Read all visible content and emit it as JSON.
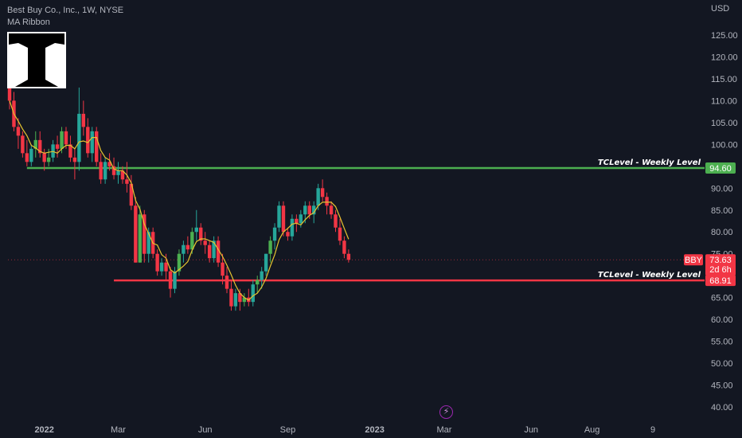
{
  "header": {
    "symbol_title": "Best Buy Co., Inc., 1W, NYSE",
    "indicator": "MA Ribbon"
  },
  "colors": {
    "background": "#131722",
    "up": "#26a69a",
    "up_bright": "#4caf50",
    "down": "#f23645",
    "ma": "#e5c430",
    "support_level": "#f23645",
    "resistance_level": "#4caf50",
    "grid": "#1e222d"
  },
  "chart_data": {
    "type": "candlestick",
    "title": "Best Buy Co., Inc., 1W, NYSE",
    "currency": "USD",
    "ylim": [
      36,
      127
    ],
    "y_ticks": [
      40,
      45,
      50,
      55,
      60,
      65,
      70,
      75,
      80,
      85,
      90,
      95,
      100,
      105,
      110,
      115,
      120,
      125
    ],
    "x_tick_labels": [
      "2022",
      "Mar",
      "Jun",
      "Sep",
      "2023",
      "Mar",
      "Jun",
      "Aug",
      "9"
    ],
    "x_tick_weeks": [
      8,
      25,
      45,
      64,
      84,
      100,
      120,
      134,
      148
    ],
    "candles_ohlc": [
      [
        117,
        120,
        108,
        110
      ],
      [
        110,
        112,
        103,
        104
      ],
      [
        104,
        106,
        99,
        102
      ],
      [
        102,
        103,
        97,
        98
      ],
      [
        98,
        101,
        95,
        96
      ],
      [
        96,
        100,
        95,
        99
      ],
      [
        99,
        103,
        97,
        101
      ],
      [
        101,
        103,
        97,
        98
      ],
      [
        98,
        99,
        94,
        96
      ],
      [
        96,
        99,
        95,
        97
      ],
      [
        97,
        101,
        96,
        100
      ],
      [
        100,
        102,
        97,
        99
      ],
      [
        99,
        104,
        98,
        103
      ],
      [
        103,
        104,
        99,
        100
      ],
      [
        100,
        102,
        96,
        97
      ],
      [
        97,
        99,
        92,
        96
      ],
      [
        96,
        113,
        94,
        107
      ],
      [
        107,
        110,
        102,
        104
      ],
      [
        104,
        106,
        97,
        98
      ],
      [
        98,
        104,
        96,
        103
      ],
      [
        103,
        104,
        95,
        96
      ],
      [
        96,
        98,
        91,
        92
      ],
      [
        92,
        97,
        91,
        96
      ],
      [
        96,
        98,
        94,
        95
      ],
      [
        95,
        97,
        92,
        93
      ],
      [
        93,
        96,
        91,
        94
      ],
      [
        94,
        95,
        91,
        92
      ],
      [
        92,
        96,
        89,
        91
      ],
      [
        91,
        93,
        85,
        86
      ],
      [
        86,
        88,
        73,
        73
      ],
      [
        73,
        86,
        73,
        84
      ],
      [
        84,
        85,
        73,
        75
      ],
      [
        75,
        81,
        73,
        80
      ],
      [
        80,
        81,
        74,
        75
      ],
      [
        75,
        76,
        70,
        71
      ],
      [
        71,
        74,
        70,
        73
      ],
      [
        73,
        75,
        69,
        71
      ],
      [
        71,
        72,
        65,
        67
      ],
      [
        67,
        72,
        66,
        71
      ],
      [
        71,
        76,
        70,
        75
      ],
      [
        75,
        78,
        73,
        77
      ],
      [
        77,
        79,
        75,
        76
      ],
      [
        76,
        81,
        75,
        80
      ],
      [
        80,
        85,
        78,
        81
      ],
      [
        81,
        82,
        77,
        78
      ],
      [
        78,
        80,
        75,
        77
      ],
      [
        77,
        78,
        73,
        74
      ],
      [
        74,
        79,
        73,
        78
      ],
      [
        78,
        79,
        72,
        73
      ],
      [
        73,
        75,
        68,
        70
      ],
      [
        70,
        72,
        66,
        67
      ],
      [
        67,
        69,
        62,
        63
      ],
      [
        63,
        67,
        62,
        66
      ],
      [
        66,
        67,
        62,
        64
      ],
      [
        64,
        66,
        63,
        65
      ],
      [
        65,
        67,
        63,
        64
      ],
      [
        64,
        69,
        63,
        68
      ],
      [
        68,
        70,
        66,
        69
      ],
      [
        69,
        72,
        67,
        71
      ],
      [
        71,
        75,
        70,
        75
      ],
      [
        75,
        79,
        73,
        78
      ],
      [
        78,
        82,
        76,
        81
      ],
      [
        81,
        87,
        80,
        86
      ],
      [
        86,
        87,
        79,
        80
      ],
      [
        80,
        81,
        78,
        79
      ],
      [
        79,
        84,
        78,
        83
      ],
      [
        83,
        84,
        80,
        82
      ],
      [
        82,
        85,
        81,
        84
      ],
      [
        84,
        87,
        82,
        86
      ],
      [
        86,
        87,
        83,
        84
      ],
      [
        84,
        87,
        82,
        86
      ],
      [
        86,
        91,
        85,
        90
      ],
      [
        90,
        92,
        87,
        88
      ],
      [
        88,
        89,
        84,
        86
      ],
      [
        86,
        87,
        83,
        84
      ],
      [
        84,
        85,
        80,
        81
      ],
      [
        81,
        83,
        77,
        78
      ],
      [
        78,
        79,
        74,
        75
      ],
      [
        75,
        76,
        73,
        73.63
      ]
    ],
    "series": [
      {
        "name": "MA Ribbon",
        "type": "line"
      }
    ],
    "levels": [
      {
        "label": "TCLevel - Weekly Level",
        "value": 94.6,
        "value_label": "94.60",
        "start_week": 4,
        "kind": "resistance"
      },
      {
        "label": "TCLevel - Weekly Level",
        "value": 68.91,
        "value_label": "68.91",
        "start_week": 24,
        "kind": "support"
      }
    ],
    "last_price": {
      "ticker": "BBY",
      "value": 73.63,
      "value_label": "73.63",
      "countdown": "2d 6h"
    },
    "legend_position": "top-left",
    "grid": false
  }
}
